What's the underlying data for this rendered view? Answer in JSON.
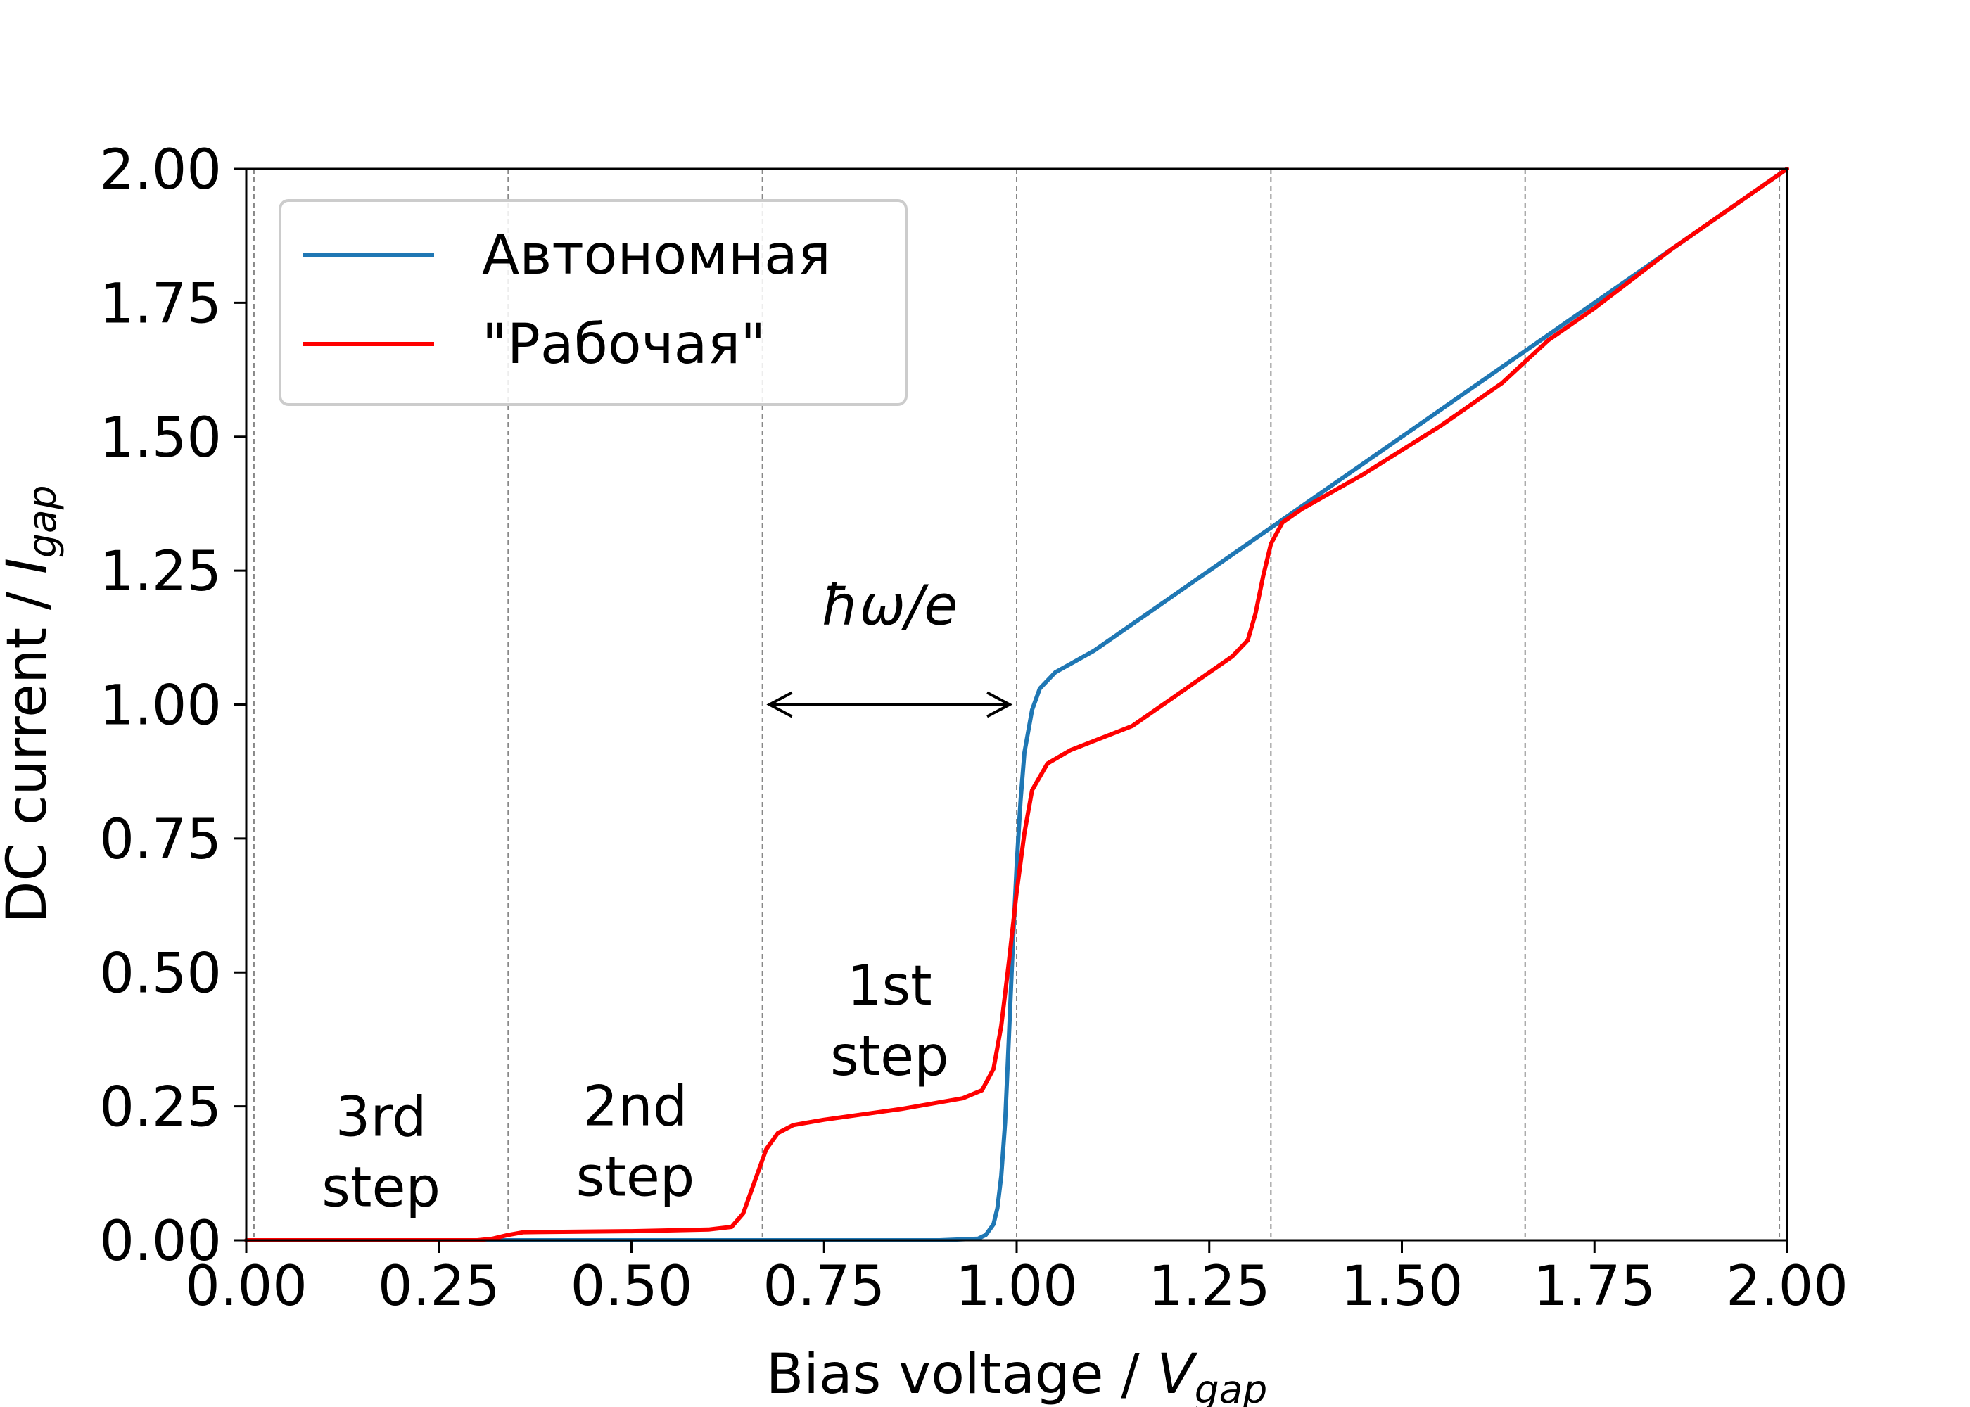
{
  "chart_data": {
    "type": "line",
    "title": "",
    "xlabel": {
      "main": "Bias voltage / ",
      "symbol": "V",
      "sub": "gap"
    },
    "ylabel": {
      "main": "DC current / ",
      "symbol": "I",
      "sub": "gap"
    },
    "xlim": [
      0.0,
      2.0
    ],
    "ylim": [
      0.0,
      2.0
    ],
    "xticks": [
      0.0,
      0.25,
      0.5,
      0.75,
      1.0,
      1.25,
      1.5,
      1.75,
      2.0
    ],
    "xtick_labels": [
      "0.00",
      "0.25",
      "0.50",
      "0.75",
      "1.00",
      "1.25",
      "1.50",
      "1.75",
      "2.00"
    ],
    "yticks": [
      0.0,
      0.25,
      0.5,
      0.75,
      1.0,
      1.25,
      1.5,
      1.75,
      2.0
    ],
    "ytick_labels": [
      "0.00",
      "0.25",
      "0.50",
      "0.75",
      "1.00",
      "1.25",
      "1.50",
      "1.75",
      "2.00"
    ],
    "grid": false,
    "vertical_reference_lines": [
      0.01,
      0.34,
      0.67,
      1.0,
      1.33,
      1.66,
      1.99
    ],
    "legend_position": "upper-left",
    "series": [
      {
        "name": "Автономная",
        "color": "#1f77b4",
        "points": [
          [
            0.0,
            0.0
          ],
          [
            0.5,
            0.0
          ],
          [
            0.9,
            0.0
          ],
          [
            0.95,
            0.003
          ],
          [
            0.96,
            0.01
          ],
          [
            0.97,
            0.03
          ],
          [
            0.975,
            0.06
          ],
          [
            0.98,
            0.12
          ],
          [
            0.985,
            0.22
          ],
          [
            0.99,
            0.38
          ],
          [
            0.995,
            0.55
          ],
          [
            1.0,
            0.7
          ],
          [
            1.005,
            0.82
          ],
          [
            1.01,
            0.91
          ],
          [
            1.02,
            0.99
          ],
          [
            1.03,
            1.03
          ],
          [
            1.05,
            1.06
          ],
          [
            1.1,
            1.1
          ],
          [
            1.2,
            1.2
          ],
          [
            1.3,
            1.3
          ],
          [
            1.4,
            1.4
          ],
          [
            1.5,
            1.5
          ],
          [
            1.6,
            1.6
          ],
          [
            1.7,
            1.7
          ],
          [
            1.8,
            1.8
          ],
          [
            1.9,
            1.9
          ],
          [
            2.0,
            2.0
          ]
        ]
      },
      {
        "name": "\"Рабочая\"",
        "color": "#ff0000",
        "points": [
          [
            0.0,
            0.0
          ],
          [
            0.3,
            0.0
          ],
          [
            0.32,
            0.003
          ],
          [
            0.34,
            0.01
          ],
          [
            0.36,
            0.015
          ],
          [
            0.5,
            0.017
          ],
          [
            0.6,
            0.02
          ],
          [
            0.63,
            0.025
          ],
          [
            0.645,
            0.05
          ],
          [
            0.66,
            0.11
          ],
          [
            0.675,
            0.17
          ],
          [
            0.69,
            0.2
          ],
          [
            0.71,
            0.215
          ],
          [
            0.75,
            0.225
          ],
          [
            0.85,
            0.245
          ],
          [
            0.93,
            0.265
          ],
          [
            0.955,
            0.28
          ],
          [
            0.97,
            0.32
          ],
          [
            0.98,
            0.4
          ],
          [
            0.99,
            0.52
          ],
          [
            1.0,
            0.65
          ],
          [
            1.01,
            0.76
          ],
          [
            1.02,
            0.84
          ],
          [
            1.04,
            0.89
          ],
          [
            1.07,
            0.915
          ],
          [
            1.15,
            0.96
          ],
          [
            1.25,
            1.06
          ],
          [
            1.28,
            1.09
          ],
          [
            1.3,
            1.12
          ],
          [
            1.31,
            1.17
          ],
          [
            1.32,
            1.24
          ],
          [
            1.33,
            1.3
          ],
          [
            1.345,
            1.34
          ],
          [
            1.37,
            1.365
          ],
          [
            1.45,
            1.43
          ],
          [
            1.55,
            1.52
          ],
          [
            1.63,
            1.6
          ],
          [
            1.66,
            1.64
          ],
          [
            1.69,
            1.68
          ],
          [
            1.75,
            1.74
          ],
          [
            1.85,
            1.85
          ],
          [
            2.0,
            2.0
          ]
        ]
      }
    ],
    "annotations": [
      {
        "id": "step3",
        "lines": [
          "3rd",
          "step"
        ],
        "x": 0.175,
        "y": 0.195
      },
      {
        "id": "step2",
        "lines": [
          "2nd",
          "step"
        ],
        "x": 0.505,
        "y": 0.215
      },
      {
        "id": "step1",
        "lines": [
          "1st",
          "step"
        ],
        "x": 0.835,
        "y": 0.44
      },
      {
        "id": "photon",
        "text": "ħω/e",
        "x": 0.835,
        "y": 1.15
      }
    ],
    "arrow": {
      "x_start": 0.67,
      "x_end": 1.0,
      "y": 1.0,
      "style": "double-headed"
    }
  }
}
